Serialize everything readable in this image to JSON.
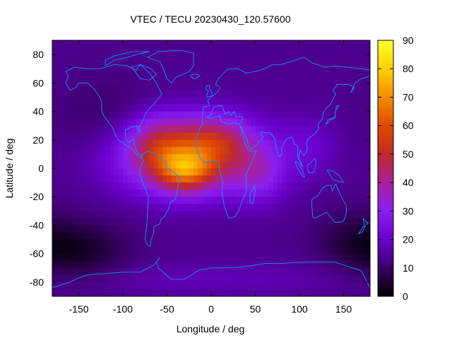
{
  "chart_data": {
    "type": "heatmap",
    "title": "VTEC / TECU 20230430_120.57600",
    "xlabel": "Longitude / deg",
    "ylabel": "Latitude / deg",
    "xlim": [
      -180,
      180
    ],
    "ylim": [
      -90,
      90
    ],
    "x_ticks": [
      -150,
      -100,
      -50,
      0,
      50,
      100,
      150
    ],
    "y_ticks": [
      -80,
      -60,
      -40,
      -20,
      0,
      20,
      40,
      60,
      80
    ],
    "colorbar": {
      "min": 0,
      "max": 90,
      "ticks": [
        0,
        10,
        20,
        30,
        40,
        50,
        60,
        70,
        80,
        90
      ],
      "colormap": [
        "#000000",
        "#3a0066",
        "#6a00cc",
        "#8a1ff0",
        "#a8209c",
        "#c02a2a",
        "#e04a00",
        "#f28c00",
        "#ffd100",
        "#ffff2a"
      ]
    },
    "overlay": "coastlines",
    "coastline_color": "#1a8fff",
    "vtec_description_points": [
      {
        "lon": -30,
        "lat": 0,
        "vtec": 85
      },
      {
        "lon": -60,
        "lat": 15,
        "vtec": 65
      },
      {
        "lon": 10,
        "lat": 20,
        "vtec": 65
      },
      {
        "lon": 60,
        "lat": 0,
        "vtec": 50
      },
      {
        "lon": -150,
        "lat": -60,
        "vtec": 5
      },
      {
        "lon": 100,
        "lat": -60,
        "vtec": 15
      },
      {
        "lon": 150,
        "lat": 60,
        "vtec": 20
      },
      {
        "lon": 0,
        "lat": -80,
        "vtec": 15
      }
    ]
  }
}
